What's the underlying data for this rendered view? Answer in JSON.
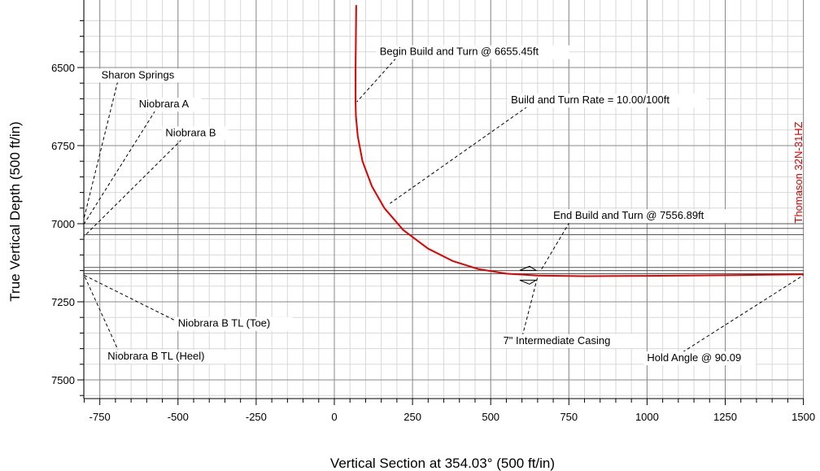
{
  "chart_data": {
    "type": "line",
    "title": "",
    "xlabel": "Vertical Section at 354.03° (500 ft/in)",
    "ylabel": "True Vertical Depth (500 ft/in)",
    "xlim": [
      -800,
      1500
    ],
    "ylim": [
      6350,
      7580
    ],
    "y_inverted": true,
    "grid": true,
    "x_ticks": [
      -750,
      -500,
      -250,
      0,
      250,
      500,
      750,
      1000,
      1250,
      1500
    ],
    "y_ticks": [
      6500,
      6750,
      7000,
      7250,
      7500
    ],
    "x_tick_labels": [
      "-750",
      "-500",
      "-250",
      "0",
      "250",
      "500",
      "750",
      "1000",
      "1250",
      "1500"
    ],
    "y_tick_labels": [
      "6500",
      "6750",
      "7000",
      "7250",
      "7500"
    ],
    "formation_lines_tvd": [
      7000,
      7015,
      7035,
      7140,
      7150,
      7160
    ],
    "series": [
      {
        "name": "Thomason 32N-31HZ",
        "color": "#e00000",
        "points": [
          [
            70,
            6300
          ],
          [
            68,
            6500
          ],
          [
            68,
            6610
          ],
          [
            69,
            6655
          ],
          [
            75,
            6720
          ],
          [
            90,
            6800
          ],
          [
            120,
            6880
          ],
          [
            160,
            6950
          ],
          [
            220,
            7020
          ],
          [
            300,
            7080
          ],
          [
            380,
            7120
          ],
          [
            460,
            7145
          ],
          [
            550,
            7160
          ],
          [
            650,
            7166
          ],
          [
            800,
            7168
          ],
          [
            1000,
            7167
          ],
          [
            1250,
            7165
          ],
          [
            1500,
            7162
          ]
        ]
      }
    ],
    "annotations": [
      {
        "text": "Sharon Springs",
        "label_x": -745,
        "label_y": 6535,
        "target_x": -800,
        "target_y": 6980
      },
      {
        "text": "Niobrara A",
        "label_x": -625,
        "label_y": 6628,
        "target_x": -800,
        "target_y": 7000
      },
      {
        "text": "Niobrara B",
        "label_x": -540,
        "label_y": 6720,
        "target_x": -800,
        "target_y": 7040
      },
      {
        "text": "Begin Build and Turn @ 6655.45ft",
        "label_x": 145,
        "label_y": 6460,
        "target_x": 72,
        "target_y": 6610
      },
      {
        "text": "Build and Turn Rate = 10.00/100ft",
        "label_x": 565,
        "label_y": 6615,
        "target_x": 178,
        "target_y": 6935
      },
      {
        "text": "End Build and Turn @ 7556.89ft",
        "label_x": 700,
        "label_y": 6985,
        "target_x": 660,
        "target_y": 7150
      },
      {
        "text": "Niobrara B TL (Toe)",
        "label_x": -500,
        "label_y": 7330,
        "target_x": -800,
        "target_y": 7165
      },
      {
        "text": "7\" Intermediate Casing",
        "label_x": 540,
        "label_y": 7385,
        "target_x": 650,
        "target_y": 7170
      },
      {
        "text": "Niobrara B TL (Heel)",
        "label_x": -725,
        "label_y": 7435,
        "target_x": -800,
        "target_y": 7165
      },
      {
        "text": "Hold Angle @ 90.09",
        "label_x": 1000,
        "label_y": 7440,
        "target_x": 1500,
        "target_y": 7165
      }
    ],
    "casing_marker": {
      "text": "7\" Intermediate Casing",
      "x": 645,
      "y": 7165
    }
  }
}
